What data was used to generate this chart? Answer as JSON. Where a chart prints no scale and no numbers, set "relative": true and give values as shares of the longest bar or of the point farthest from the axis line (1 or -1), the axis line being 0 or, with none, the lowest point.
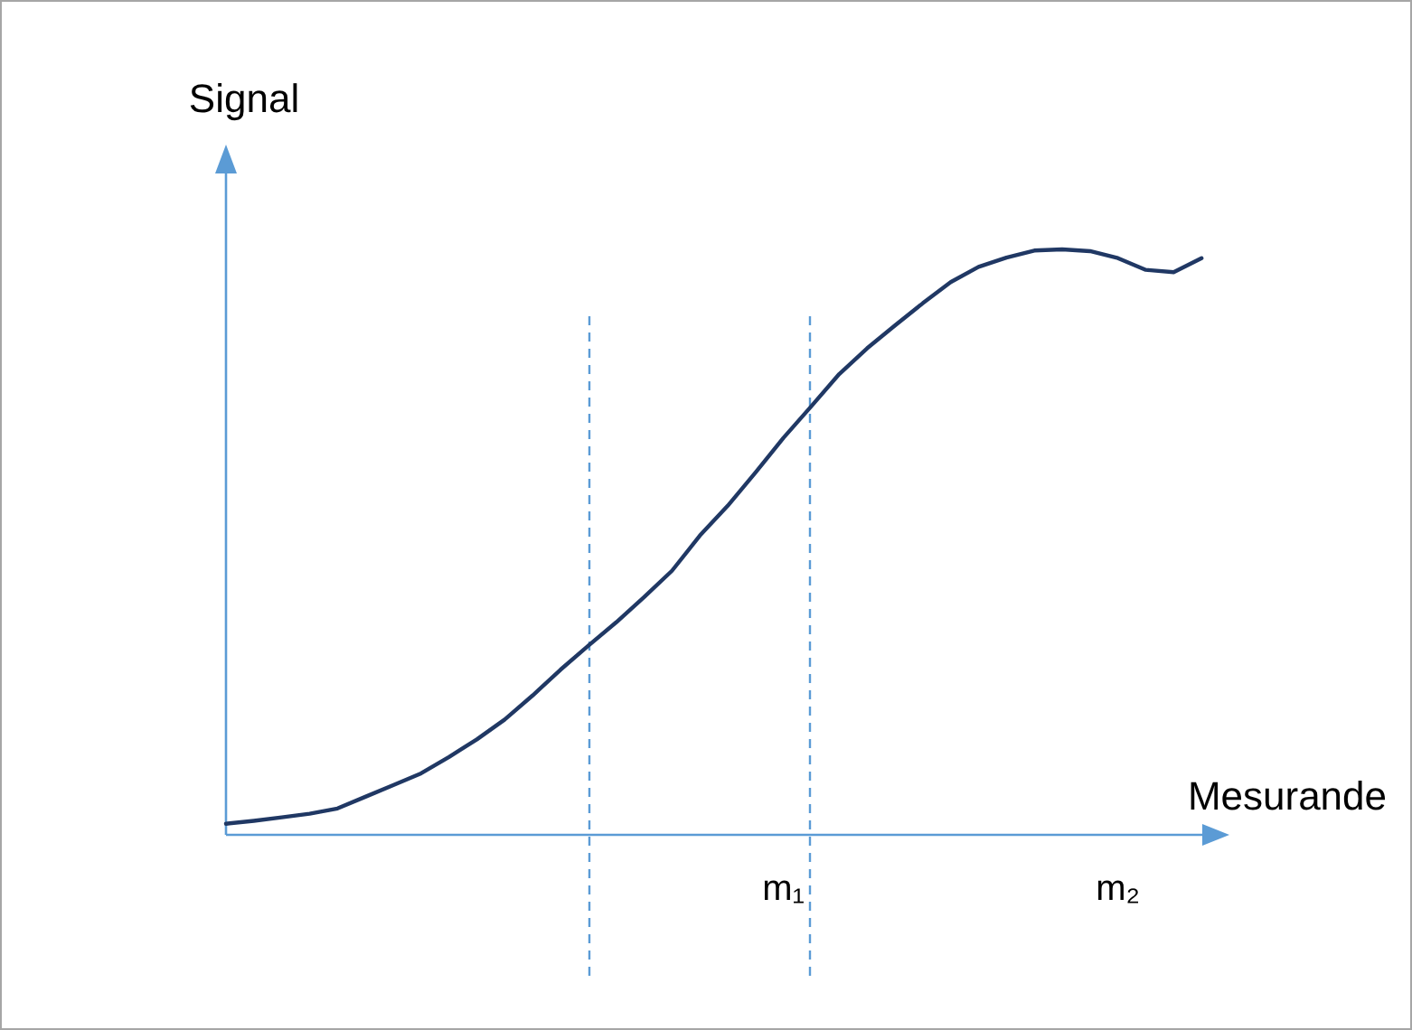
{
  "chart_data": {
    "type": "line",
    "relative": true,
    "xlabel": "Mesurande",
    "ylabel": "Signal",
    "categories": [
      null,
      null,
      null,
      null,
      null,
      null,
      null,
      null,
      null,
      null,
      null,
      null,
      null,
      null,
      null,
      null,
      null,
      null,
      null,
      null,
      "m₁",
      null,
      null,
      null,
      null,
      null,
      null,
      null,
      null,
      null,
      null,
      null,
      "m₂",
      null,
      null,
      null
    ],
    "series": [
      {
        "color": "#203864",
        "values": [
          0.019,
          0.024,
          0.03,
          0.036,
          0.045,
          0.065,
          0.085,
          0.105,
          0.133,
          0.163,
          0.197,
          0.238,
          0.282,
          0.323,
          0.363,
          0.406,
          0.451,
          0.511,
          0.562,
          0.619,
          0.678,
          0.732,
          0.787,
          0.831,
          0.87,
          0.908,
          0.944,
          0.97,
          0.986,
          0.998,
          1,
          0.997,
          0.985,
          0.965,
          0.961,
          0.985
        ]
      }
    ],
    "line_style": "solid"
  }
}
